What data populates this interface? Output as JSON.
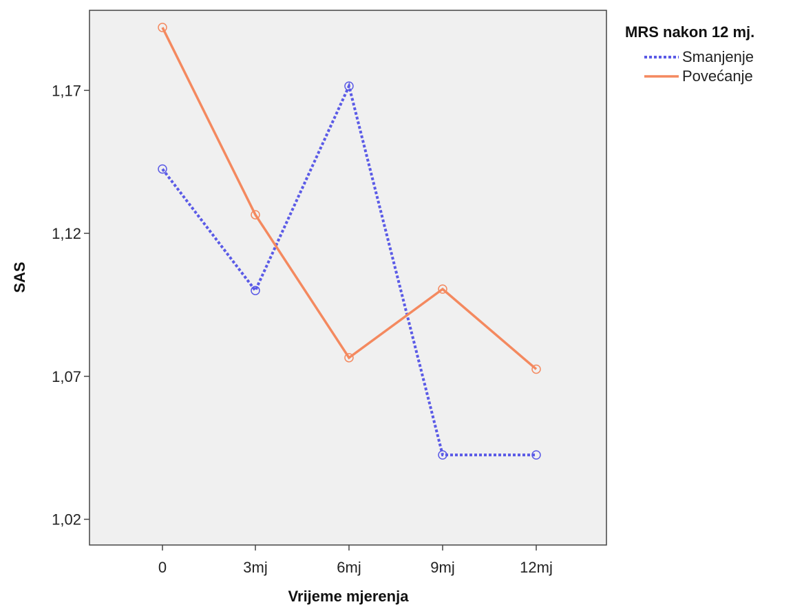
{
  "chart_data": {
    "type": "line",
    "xlabel": "Vrijeme mjerenja",
    "ylabel": "SAS",
    "categories": [
      "0",
      "3mj",
      "6mj",
      "9mj",
      "12mj"
    ],
    "y_ticks": [
      "1,02",
      "1,07",
      "1,12",
      "1,17"
    ],
    "y_tick_values": [
      1.02,
      1.07,
      1.12,
      1.17
    ],
    "ylim": [
      1.011,
      1.198
    ],
    "grid": false,
    "legend": {
      "title": "MRS nakon 12 mj.",
      "position": "top-right"
    },
    "series": [
      {
        "name": "Smanjenje",
        "color": "#5a5ae6",
        "dash": "dotted",
        "marker": "circle",
        "values": [
          1.1425,
          1.1,
          1.1715,
          1.0425,
          1.0425
        ]
      },
      {
        "name": "Povećanje",
        "color": "#f4895f",
        "dash": "solid",
        "marker": "circle",
        "values": [
          1.192,
          1.1265,
          1.0765,
          1.1005,
          1.0725
        ]
      }
    ]
  }
}
